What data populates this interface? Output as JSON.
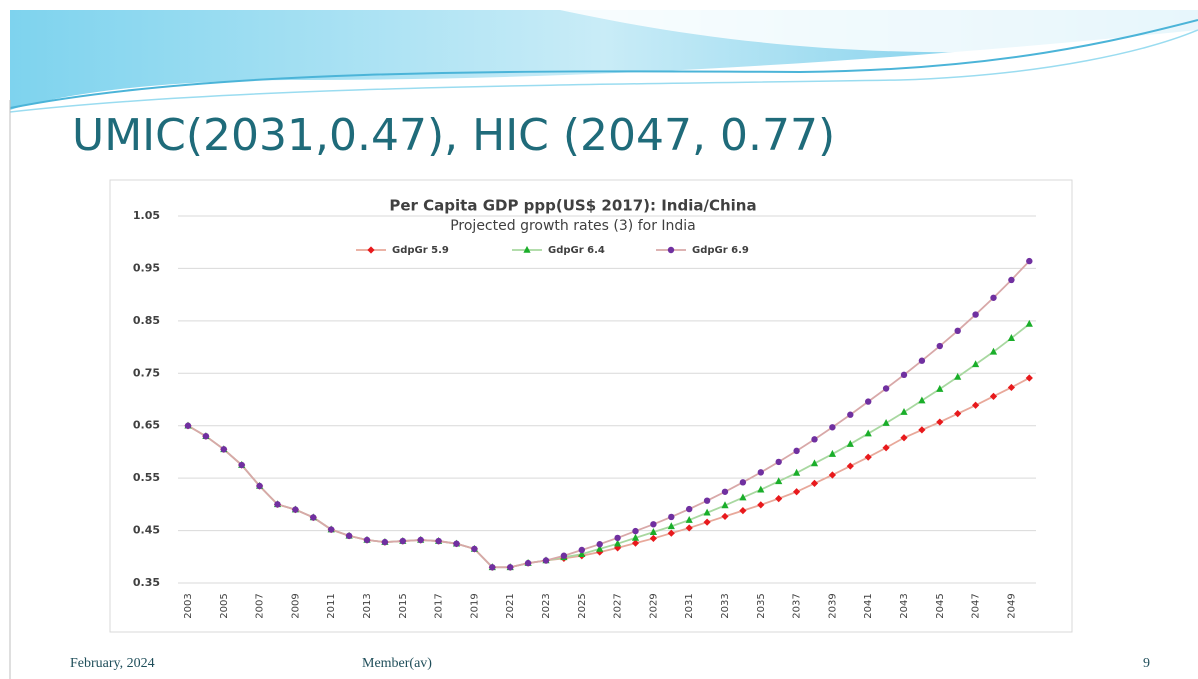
{
  "slide": {
    "title": "UMIC(2031,0.47), HIC (2047, 0.77)"
  },
  "footer": {
    "date": "February, 2024",
    "center": "Member(av)",
    "page": "9"
  },
  "chart_data": {
    "type": "line",
    "title": "Per Capita GDP ppp(US$ 2017): India/China",
    "subtitle": "Projected growth rates (3) for India",
    "categories": [
      "2003",
      null,
      "2005",
      null,
      "2007",
      null,
      "2009",
      null,
      "2011",
      null,
      "2013",
      null,
      "2015",
      null,
      "2017",
      null,
      "2019",
      null,
      "2021",
      null,
      "2023",
      null,
      "2025",
      null,
      "2027",
      null,
      "2029",
      null,
      "2031",
      null,
      "2033",
      null,
      "2035",
      null,
      "2037",
      null,
      "2039",
      null,
      "2041",
      null,
      "2043",
      null,
      "2045",
      null,
      "2047",
      null,
      "2049",
      null
    ],
    "ylim": [
      0.35,
      1.05
    ],
    "yticks": [
      0.35,
      0.45,
      0.55,
      0.65,
      0.75,
      0.85,
      0.95,
      1.05
    ],
    "grid": true,
    "legend": "top",
    "series": [
      {
        "name": "GdpGr 5.9",
        "color": "#e8191c",
        "line_color": "#e8a89a",
        "marker": "diamond",
        "values": [
          0.65,
          0.63,
          0.605,
          0.575,
          0.535,
          0.5,
          0.49,
          0.475,
          0.452,
          0.44,
          0.432,
          0.428,
          0.43,
          0.432,
          0.43,
          0.425,
          0.415,
          0.38,
          0.38,
          0.388,
          0.393,
          0.397,
          0.402,
          0.409,
          0.417,
          0.426,
          0.435,
          0.445,
          0.455,
          0.466,
          0.477,
          0.488,
          0.499,
          0.511,
          0.524,
          0.54,
          0.556,
          0.573,
          0.59,
          0.608,
          0.627,
          0.642,
          0.657,
          0.673,
          0.689,
          0.706,
          0.723,
          0.741
        ]
      },
      {
        "name": "GdpGr 6.4",
        "color": "#1aae2a",
        "line_color": "#a8d8a0",
        "marker": "triangle",
        "values": [
          0.65,
          0.63,
          0.605,
          0.575,
          0.535,
          0.5,
          0.49,
          0.475,
          0.452,
          0.44,
          0.432,
          0.428,
          0.43,
          0.432,
          0.43,
          0.425,
          0.415,
          0.38,
          0.38,
          0.388,
          0.393,
          0.399,
          0.405,
          0.415,
          0.425,
          0.436,
          0.447,
          0.458,
          0.47,
          0.484,
          0.498,
          0.513,
          0.528,
          0.544,
          0.56,
          0.578,
          0.596,
          0.615,
          0.635,
          0.655,
          0.676,
          0.698,
          0.72,
          0.743,
          0.767,
          0.791,
          0.817,
          0.844
        ]
      },
      {
        "name": "GdpGr 6.9",
        "color": "#7030a0",
        "line_color": "#d8a8a8",
        "marker": "circle",
        "values": [
          0.65,
          0.63,
          0.605,
          0.575,
          0.535,
          0.5,
          0.49,
          0.475,
          0.452,
          0.44,
          0.432,
          0.428,
          0.43,
          0.432,
          0.43,
          0.425,
          0.415,
          0.38,
          0.38,
          0.388,
          0.393,
          0.402,
          0.413,
          0.424,
          0.436,
          0.449,
          0.462,
          0.476,
          0.491,
          0.507,
          0.524,
          0.542,
          0.561,
          0.581,
          0.602,
          0.624,
          0.647,
          0.671,
          0.696,
          0.721,
          0.747,
          0.774,
          0.802,
          0.831,
          0.862,
          0.894,
          0.928,
          0.964
        ]
      }
    ]
  }
}
